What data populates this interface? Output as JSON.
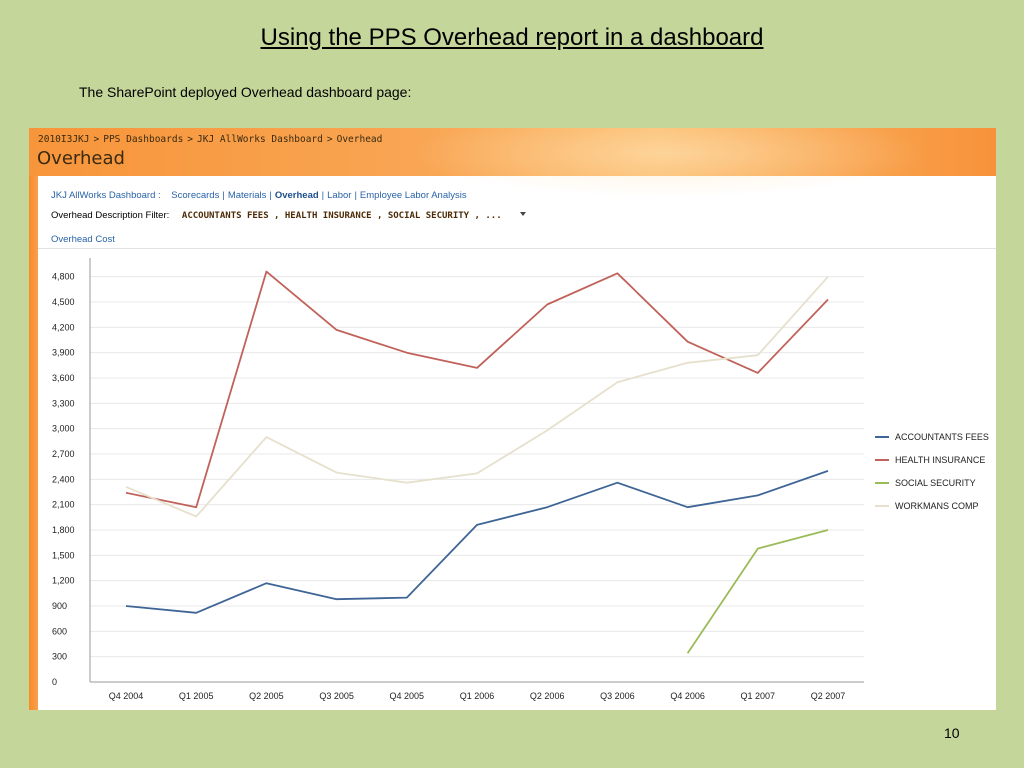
{
  "slide": {
    "title": "Using the PPS Overhead report in a dashboard",
    "subtitle": "The SharePoint deployed Overhead dashboard page:",
    "page_number": "10"
  },
  "sharepoint": {
    "breadcrumb": [
      "2010I3JKJ",
      "PPS Dashboards",
      "JKJ AllWorks Dashboard",
      "Overhead"
    ],
    "breadcrumb_separator": ">",
    "page_title": "Overhead",
    "nav": {
      "lead": "JKJ AllWorks Dashboard :",
      "links": [
        "Scorecards",
        "Materials",
        "Overhead",
        "Labor",
        "Employee Labor Analysis"
      ],
      "active": "Overhead"
    },
    "filter": {
      "label": "Overhead Description Filter:",
      "value": "ACCOUNTANTS FEES , HEALTH INSURANCE , SOCIAL SECURITY , ..."
    },
    "panel_title": "Overhead Cost"
  },
  "colors": {
    "slide_background": "#c5d69b",
    "header_orange": "#f7953a",
    "link_blue": "#2a63a8"
  },
  "chart_data": {
    "type": "line",
    "categories": [
      "Q4 2004",
      "Q1 2005",
      "Q2 2005",
      "Q3 2005",
      "Q4 2005",
      "Q1 2006",
      "Q2 2006",
      "Q3 2006",
      "Q4 2006",
      "Q1 2007",
      "Q2 2007"
    ],
    "yticks": [
      0,
      300,
      600,
      900,
      1200,
      1500,
      1800,
      2100,
      2400,
      2700,
      3000,
      3300,
      3600,
      3900,
      4200,
      4500,
      4800
    ],
    "ytick_labels": [
      "0",
      "300",
      "600",
      "900",
      "1,200",
      "1,500",
      "1,800",
      "2,100",
      "2,400",
      "2,700",
      "3,000",
      "3,300",
      "3,600",
      "3,900",
      "4,200",
      "4,500",
      "4,800"
    ],
    "ylim": [
      0,
      4950
    ],
    "grid": true,
    "legend_position": "right",
    "series": [
      {
        "name": "ACCOUNTANTS FEES",
        "color": "#3e6596",
        "values": [
          900,
          820,
          1170,
          980,
          1000,
          1860,
          2070,
          2360,
          2070,
          2210,
          2500
        ]
      },
      {
        "name": "HEALTH INSURANCE",
        "color": "#c0625a",
        "values": [
          2240,
          2070,
          4860,
          4170,
          3900,
          3720,
          4470,
          4840,
          4030,
          3660,
          4530
        ]
      },
      {
        "name": "SOCIAL SECURITY",
        "color": "#9bbb59",
        "values": [
          null,
          null,
          null,
          null,
          null,
          null,
          null,
          null,
          340,
          1580,
          1800
        ]
      },
      {
        "name": "WORKMANS COMP",
        "color": "#e6e0cc",
        "values": [
          2310,
          1960,
          2900,
          2480,
          2360,
          2470,
          2980,
          3550,
          3780,
          3870,
          4800
        ]
      }
    ]
  }
}
